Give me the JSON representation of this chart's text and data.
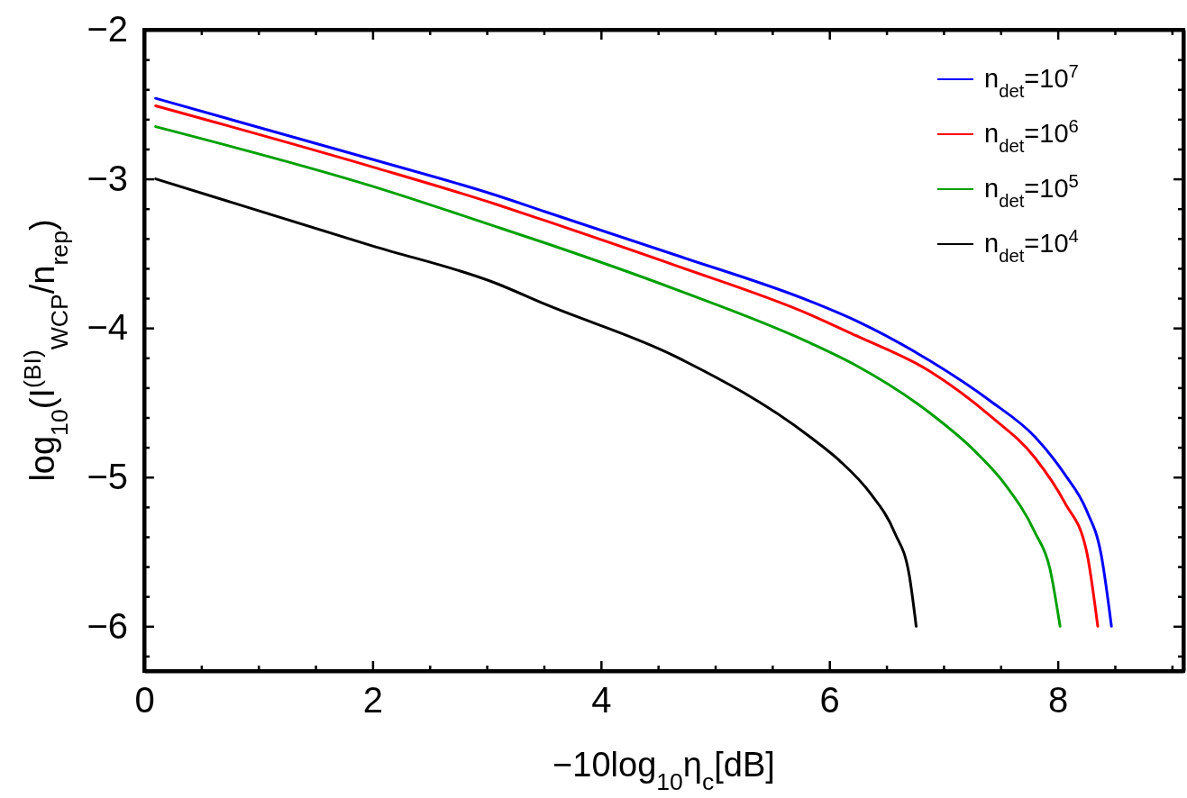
{
  "chart_data": {
    "type": "line",
    "xlabel": "−10log$_{10}$η$_{c}$[dB]",
    "ylabel": "log$_{10}$(I$^{(BI)}$$_{WCP}$/n$_{rep}$)",
    "xlim": [
      0,
      9.1
    ],
    "ylim": [
      -6.3,
      -2
    ],
    "xticks": [
      0,
      {
        "value": 0.5,
        "label": null
      },
      {
        "value": 1,
        "label": null
      },
      {
        "value": 1.5,
        "label": null
      },
      2,
      {
        "value": 2.5,
        "label": null
      },
      {
        "value": 3,
        "label": null
      },
      {
        "value": 3.5,
        "label": null
      },
      4,
      {
        "value": 4.5,
        "label": null
      },
      {
        "value": 5,
        "label": null
      },
      {
        "value": 5.5,
        "label": null
      },
      6,
      {
        "value": 6.5,
        "label": null
      },
      {
        "value": 7,
        "label": null
      },
      {
        "value": 7.5,
        "label": null
      },
      8,
      {
        "value": 8.5,
        "label": null
      },
      {
        "value": 9,
        "label": null
      }
    ],
    "yticks": [
      {
        "value": -6.2,
        "label": null
      },
      -6,
      {
        "value": -5.8,
        "label": null
      },
      {
        "value": -5.6,
        "label": null
      },
      {
        "value": -5.4,
        "label": null
      },
      {
        "value": -5.2,
        "label": null
      },
      -5,
      {
        "value": -4.8,
        "label": null
      },
      {
        "value": -4.6,
        "label": null
      },
      {
        "value": -4.4,
        "label": null
      },
      {
        "value": -4.2,
        "label": null
      },
      -4,
      {
        "value": -3.8,
        "label": null
      },
      {
        "value": -3.6,
        "label": null
      },
      {
        "value": -3.4,
        "label": null
      },
      {
        "value": -3.2,
        "label": null
      },
      -3,
      {
        "value": -2.8,
        "label": null
      },
      {
        "value": -2.6,
        "label": null
      },
      {
        "value": -2.4,
        "label": null
      },
      {
        "value": -2.2,
        "label": null
      },
      -2
    ],
    "grid": false,
    "legend": "top right",
    "marker": "none",
    "line_style": "solid",
    "series": [
      {
        "name": "n$_{det}$=10$^{7}$",
        "color": "#0000ff",
        "x": [
          0.1,
          2,
          3.08,
          3.51,
          4.65,
          5.83,
          6.23,
          6.88,
          7.41,
          7.8,
          8.06,
          8.25,
          8.38,
          8.47
        ],
        "values": [
          -2.46,
          -2.87,
          -3.11,
          -3.22,
          -3.51,
          -3.82,
          -3.95,
          -4.22,
          -4.49,
          -4.73,
          -4.98,
          -5.22,
          -5.52,
          -6
        ]
      },
      {
        "name": "n$_{det}$=10$^{6}$",
        "color": "#ff0000",
        "x": [
          0.1,
          2,
          3.08,
          3.51,
          4.65,
          5.83,
          6.23,
          6.88,
          7.41,
          7.8,
          8.06,
          8.25,
          8.35
        ],
        "values": [
          -2.51,
          -2.92,
          -3.17,
          -3.28,
          -3.58,
          -3.91,
          -4.05,
          -4.29,
          -4.59,
          -4.87,
          -5.17,
          -5.49,
          -6
        ]
      },
      {
        "name": "n$_{det}$=10$^{5}$",
        "color": "#00a000",
        "x": [
          0.1,
          2,
          3.08,
          3.51,
          4.65,
          5.83,
          6.23,
          6.88,
          7.28,
          7.54,
          7.8,
          7.93,
          8.02
        ],
        "values": [
          -2.65,
          -3.05,
          -3.32,
          -3.43,
          -3.74,
          -4.1,
          -4.25,
          -4.57,
          -4.83,
          -5.05,
          -5.37,
          -5.61,
          -6
        ]
      },
      {
        "name": "n$_{det}$=10$^{4}$",
        "color": "#000000",
        "x": [
          0.1,
          2,
          3.08,
          3.51,
          4.65,
          5.83,
          6.09,
          6.36,
          6.57,
          6.7,
          6.76
        ],
        "values": [
          -3.0,
          -3.45,
          -3.7,
          -3.84,
          -4.19,
          -4.73,
          -4.89,
          -5.11,
          -5.37,
          -5.66,
          -6
        ]
      }
    ]
  }
}
